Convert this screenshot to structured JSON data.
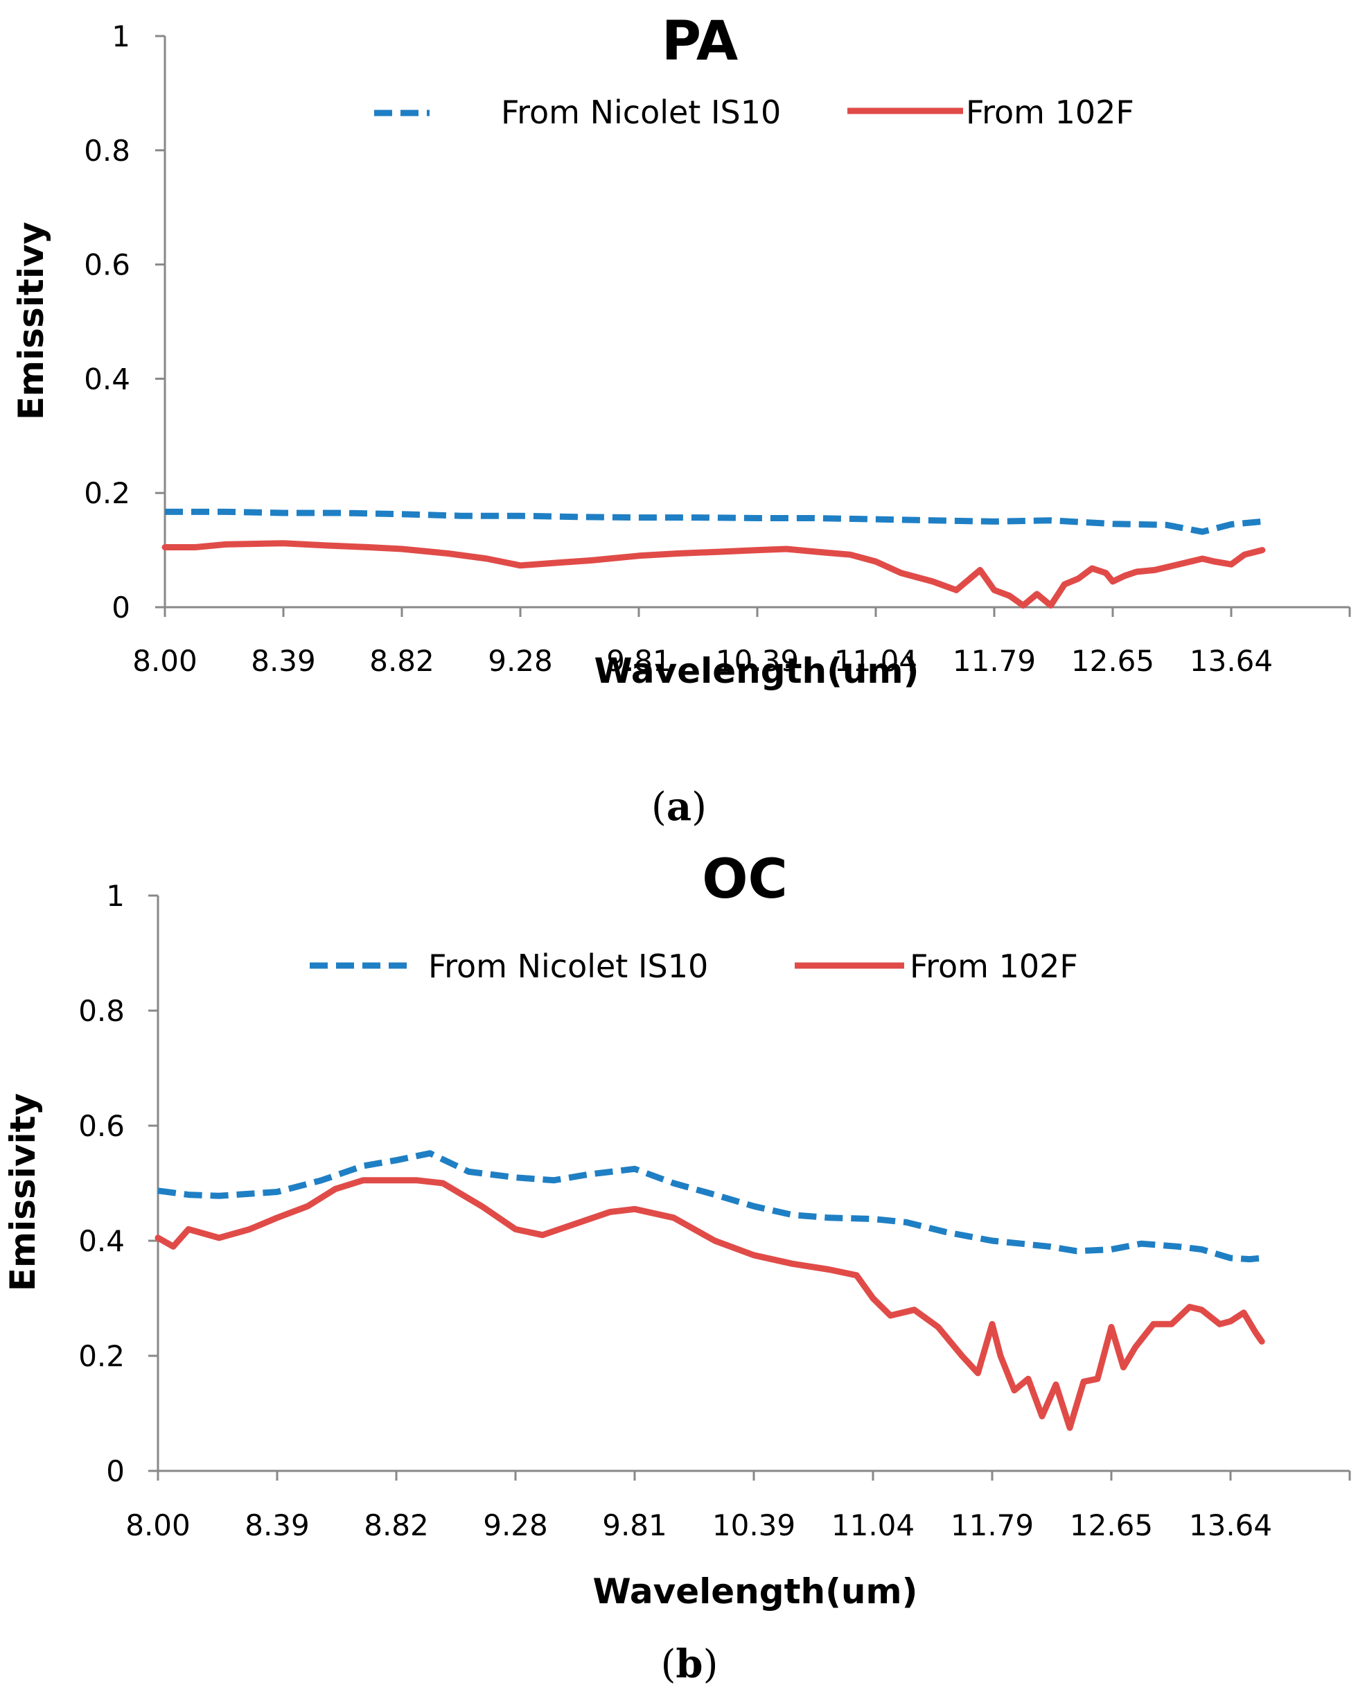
{
  "colors": {
    "series_nicolet": "#1f7fc4",
    "series_102f": "#e04b48",
    "axis": "#888888",
    "text": "#000000"
  },
  "captions": [
    "a",
    "b"
  ],
  "chart_data": [
    {
      "type": "line",
      "title": "PA",
      "xlabel": "Wavelength(um)",
      "ylabel": "Emissitivy",
      "categories": [
        "8.00",
        "8.39",
        "8.82",
        "9.28",
        "9.81",
        "10.39",
        "11.04",
        "11.79",
        "12.65",
        "13.64"
      ],
      "ylim": [
        0,
        1
      ],
      "yticks": [
        "0",
        "0.2",
        "0.4",
        "0.6",
        "0.8",
        "1"
      ],
      "legend_position": "top",
      "grid": false,
      "series": [
        {
          "name": "From Nicolet IS10",
          "style": "dashed",
          "x": [
            8.0,
            8.2,
            8.39,
            8.6,
            8.82,
            9.05,
            9.28,
            9.55,
            9.81,
            10.1,
            10.39,
            10.7,
            11.04,
            11.4,
            11.79,
            12.2,
            12.65,
            13.1,
            13.4,
            13.64,
            13.9
          ],
          "values": [
            0.167,
            0.167,
            0.165,
            0.165,
            0.163,
            0.16,
            0.16,
            0.158,
            0.157,
            0.157,
            0.156,
            0.156,
            0.154,
            0.152,
            0.15,
            0.152,
            0.146,
            0.144,
            0.132,
            0.145,
            0.15
          ]
        },
        {
          "name": "From 102F",
          "style": "solid",
          "x": [
            8.0,
            8.1,
            8.2,
            8.39,
            8.55,
            8.7,
            8.82,
            9.0,
            9.15,
            9.28,
            9.45,
            9.6,
            9.81,
            10.0,
            10.2,
            10.39,
            10.55,
            10.75,
            10.9,
            11.04,
            11.2,
            11.4,
            11.55,
            11.7,
            11.79,
            11.9,
            12.0,
            12.1,
            12.2,
            12.3,
            12.4,
            12.5,
            12.6,
            12.65,
            12.75,
            12.85,
            13.0,
            13.2,
            13.4,
            13.5,
            13.64,
            13.75,
            13.9
          ],
          "values": [
            0.105,
            0.105,
            0.11,
            0.112,
            0.108,
            0.105,
            0.102,
            0.094,
            0.085,
            0.073,
            0.078,
            0.082,
            0.09,
            0.094,
            0.097,
            0.1,
            0.102,
            0.096,
            0.092,
            0.08,
            0.06,
            0.045,
            0.03,
            0.065,
            0.03,
            0.02,
            0.003,
            0.023,
            0.003,
            0.04,
            0.05,
            0.068,
            0.06,
            0.045,
            0.055,
            0.062,
            0.065,
            0.075,
            0.085,
            0.08,
            0.075,
            0.092,
            0.1
          ]
        }
      ]
    },
    {
      "type": "line",
      "title": "OC",
      "xlabel": "Wavelength(um)",
      "ylabel": "Emissivity",
      "categories": [
        "8.00",
        "8.39",
        "8.82",
        "9.28",
        "9.81",
        "10.39",
        "11.04",
        "11.79",
        "12.65",
        "13.64"
      ],
      "ylim": [
        0,
        1
      ],
      "yticks": [
        "0",
        "0.2",
        "0.4",
        "0.6",
        "0.8",
        "1"
      ],
      "legend_position": "top",
      "grid": false,
      "series": [
        {
          "name": "From Nicolet IS10",
          "style": "dashed",
          "x": [
            8.0,
            8.1,
            8.2,
            8.39,
            8.55,
            8.7,
            8.82,
            8.95,
            9.1,
            9.28,
            9.45,
            9.6,
            9.81,
            10.0,
            10.2,
            10.39,
            10.6,
            10.8,
            11.04,
            11.25,
            11.5,
            11.79,
            12.0,
            12.2,
            12.4,
            12.65,
            12.9,
            13.2,
            13.4,
            13.64,
            13.8,
            13.9
          ],
          "values": [
            0.487,
            0.48,
            0.478,
            0.485,
            0.505,
            0.53,
            0.54,
            0.552,
            0.52,
            0.51,
            0.505,
            0.515,
            0.525,
            0.5,
            0.48,
            0.46,
            0.445,
            0.44,
            0.438,
            0.432,
            0.415,
            0.4,
            0.395,
            0.39,
            0.382,
            0.385,
            0.395,
            0.39,
            0.385,
            0.37,
            0.368,
            0.37
          ]
        },
        {
          "name": "From 102F",
          "style": "solid",
          "x": [
            8.0,
            8.05,
            8.1,
            8.2,
            8.3,
            8.39,
            8.5,
            8.6,
            8.7,
            8.82,
            8.9,
            9.0,
            9.15,
            9.28,
            9.4,
            9.55,
            9.7,
            9.81,
            10.0,
            10.2,
            10.39,
            10.6,
            10.8,
            10.95,
            11.04,
            11.15,
            11.3,
            11.45,
            11.6,
            11.7,
            11.79,
            11.85,
            11.95,
            12.05,
            12.15,
            12.25,
            12.35,
            12.45,
            12.55,
            12.65,
            12.75,
            12.85,
            13.0,
            13.15,
            13.3,
            13.4,
            13.55,
            13.64,
            13.75,
            13.85,
            13.9
          ],
          "values": [
            0.405,
            0.39,
            0.42,
            0.405,
            0.42,
            0.44,
            0.46,
            0.49,
            0.505,
            0.505,
            0.505,
            0.5,
            0.46,
            0.42,
            0.41,
            0.43,
            0.45,
            0.455,
            0.44,
            0.4,
            0.375,
            0.36,
            0.35,
            0.34,
            0.3,
            0.27,
            0.28,
            0.25,
            0.2,
            0.17,
            0.255,
            0.2,
            0.14,
            0.16,
            0.095,
            0.15,
            0.075,
            0.155,
            0.16,
            0.25,
            0.18,
            0.215,
            0.255,
            0.255,
            0.285,
            0.28,
            0.255,
            0.26,
            0.275,
            0.24,
            0.225
          ]
        }
      ]
    }
  ]
}
